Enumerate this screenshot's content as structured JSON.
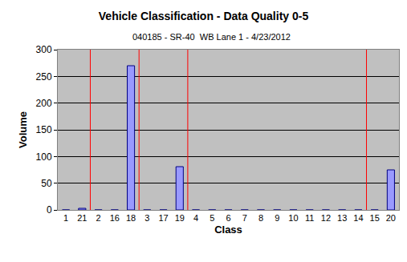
{
  "chart_data": {
    "type": "bar",
    "title": "Vehicle Classification - Data Quality 0-5",
    "subtitle": "040185 - SR-40  WB Lane 1 - 4/23/2012",
    "x_label": "Class",
    "y_label": "Volume",
    "categories": [
      "1",
      "21",
      "2",
      "16",
      "18",
      "3",
      "17",
      "19",
      "4",
      "5",
      "6",
      "7",
      "8",
      "9",
      "10",
      "11",
      "12",
      "13",
      "14",
      "15",
      "20"
    ],
    "values": [
      0,
      3,
      0,
      0,
      270,
      0,
      0,
      81,
      0,
      0,
      0,
      0,
      0,
      0,
      0,
      0,
      0,
      0,
      0,
      0,
      75
    ],
    "color": "#9999ff",
    "ylim": [
      0,
      300
    ],
    "yticks": [
      0,
      50,
      100,
      150,
      200,
      250,
      300
    ],
    "grid": true
  }
}
